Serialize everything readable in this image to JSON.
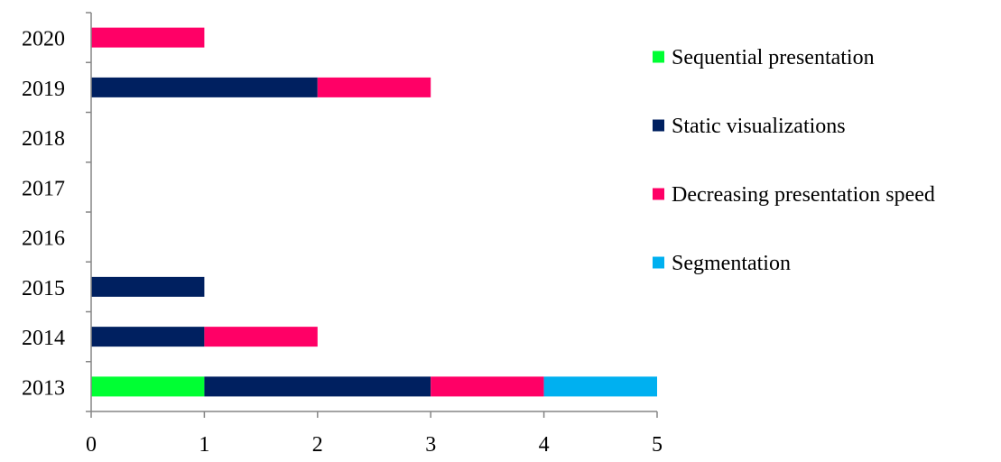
{
  "chart_data": {
    "type": "bar",
    "orientation": "horizontal",
    "stacked": true,
    "categories": [
      "2013",
      "2014",
      "2015",
      "2016",
      "2017",
      "2018",
      "2019",
      "2020"
    ],
    "series": [
      {
        "name": "Sequential presentation",
        "color": "#00ff33",
        "values": [
          1,
          0,
          0,
          0,
          0,
          0,
          0,
          0
        ]
      },
      {
        "name": "Static visualizations",
        "color": "#002060",
        "values": [
          2,
          1,
          1,
          0,
          0,
          0,
          2,
          0
        ]
      },
      {
        "name": "Decreasing presentation speed",
        "color": "#ff0066",
        "values": [
          1,
          1,
          0,
          0,
          0,
          0,
          1,
          1
        ]
      },
      {
        "name": "Segmentation",
        "color": "#00b0f0",
        "values": [
          1,
          0,
          0,
          0,
          0,
          0,
          0,
          0
        ]
      }
    ],
    "xlim": [
      0,
      5
    ],
    "x_ticks": [
      "0",
      "1",
      "2",
      "3",
      "4",
      "5"
    ],
    "title": "",
    "xlabel": "",
    "ylabel": "",
    "grid": false,
    "legend_position": "right"
  }
}
